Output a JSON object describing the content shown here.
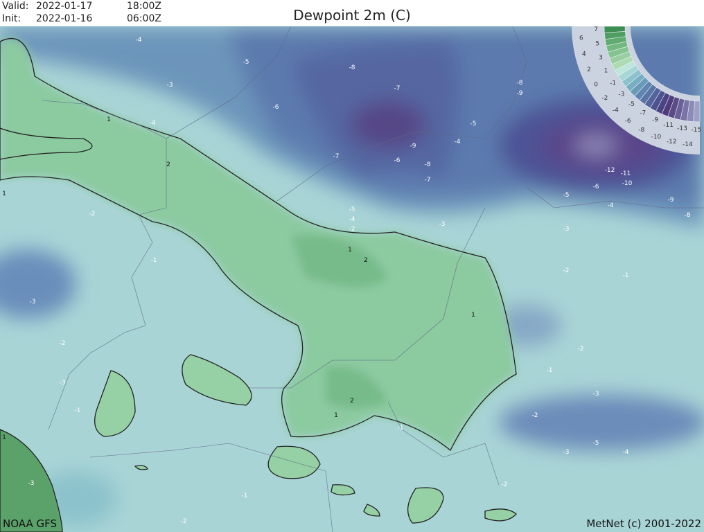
{
  "header": {
    "valid_label": "Valid:",
    "valid_date": "2022-01-17",
    "valid_time": "18:00Z",
    "init_label": "Init:",
    "init_date": "2022-01-16",
    "init_time": "06:00Z",
    "title": "Dewpoint 2m (C)"
  },
  "footer": {
    "model": "NOAA GFS",
    "credit": "MetNet (c) 2001-2022"
  },
  "legend": {
    "labels": [
      "7",
      "6",
      "5",
      "4",
      "3",
      "2",
      "1",
      "0",
      "-1",
      "-2",
      "-3",
      "-4",
      "-5",
      "-6",
      "-7",
      "-8",
      "-9",
      "-10",
      "-11",
      "-12",
      "-13",
      "-14",
      "-15"
    ],
    "colors": [
      "#3f8f55",
      "#4e9d62",
      "#5fab70",
      "#72b87f",
      "#85c490",
      "#98cfa2",
      "#addcb3",
      "#bfe6dc",
      "#a6d6d8",
      "#8cc2cc",
      "#78aec2",
      "#6a9aba",
      "#5e86b0",
      "#5875a6",
      "#53649c",
      "#4e5290",
      "#4a4384",
      "#503c7c",
      "#5a4a86",
      "#6a5f96",
      "#7a74a6",
      "#8c8ab6",
      "#a0a0c6"
    ]
  },
  "contour_labels": [
    "-4",
    "-3",
    "-5",
    "-8",
    "-7",
    "-6",
    "-9",
    "-6",
    "-8",
    "-7",
    "-5",
    "-4",
    "-7",
    "-8",
    "-9",
    "-12",
    "-11",
    "-10",
    "-6",
    "-5",
    "-4",
    "-9",
    "-8",
    "-5",
    "-4",
    "-2",
    "-3",
    "-3",
    "1",
    "2",
    "1",
    "-2",
    "-2",
    "-1",
    "-3",
    "-1",
    "-2",
    "-4",
    "-3",
    "-2",
    "1",
    "-1",
    "1",
    "-2",
    "-1",
    "2",
    "1",
    "-2",
    "-3",
    "-5",
    "-4",
    "-3",
    "-1",
    "-2",
    "-1",
    "-3",
    "2",
    "1"
  ]
}
